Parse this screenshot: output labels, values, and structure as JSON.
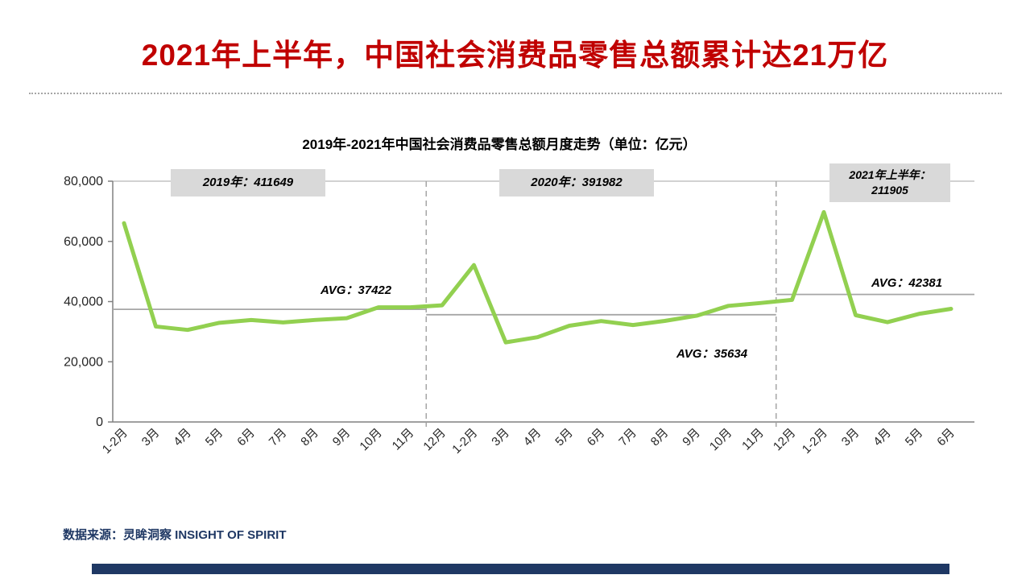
{
  "slide": {
    "title": "2021年上半年，中国社会消费品零售总额累计达21万亿",
    "footer": "数据来源：灵眸洞察 INSIGHT OF SPIRIT"
  },
  "chart_data": {
    "type": "line",
    "title": "2019年-2021年中国社会消费品零售总额月度走势（单位：亿元）",
    "xlabel": "",
    "ylabel": "",
    "ylim": [
      0,
      80000
    ],
    "yticks": [
      0,
      20000,
      40000,
      60000,
      80000
    ],
    "ytick_labels": [
      "0",
      "20,000",
      "40,000",
      "60,000",
      "80,000"
    ],
    "categories": [
      "1-2月",
      "3月",
      "4月",
      "5月",
      "6月",
      "7月",
      "8月",
      "9月",
      "10月",
      "11月",
      "12月",
      "1-2月",
      "3月",
      "4月",
      "5月",
      "6月",
      "7月",
      "8月",
      "9月",
      "10月",
      "11月",
      "12月",
      "1-2月",
      "3月",
      "4月",
      "5月",
      "6月"
    ],
    "values": [
      66064,
      31726,
      30586,
      32956,
      33878,
      33073,
      33896,
      34495,
      38104,
      38094,
      38777,
      52130,
      26450,
      28178,
      31973,
      33526,
      32203,
      33571,
      35295,
      38576,
      39514,
      40566,
      69737,
      35484,
      33153,
      35945,
      37586
    ],
    "line_color": "#92D050",
    "avg_line_color": "#A6A6A6",
    "separator_positions": [
      9.5,
      20.5
    ],
    "legend": "none",
    "grid": "top-line-and-baseline-only",
    "segments": [
      {
        "name": "2019",
        "label": "2019年：411649",
        "total": 411649,
        "avg": 37422,
        "avg_label": "AVG：37422"
      },
      {
        "name": "2020",
        "label": "2020年：391982",
        "total": 391982,
        "avg": 35634,
        "avg_label": "AVG：35634"
      },
      {
        "name": "2021H1",
        "label": "2021年上半年：\n211905",
        "total": 211905,
        "avg": 42381,
        "avg_label": "AVG：42381"
      }
    ]
  },
  "colors": {
    "title_red": "#C00000",
    "line_green": "#92D050",
    "box_gray": "#D9D9D9",
    "navy": "#1F3864"
  }
}
